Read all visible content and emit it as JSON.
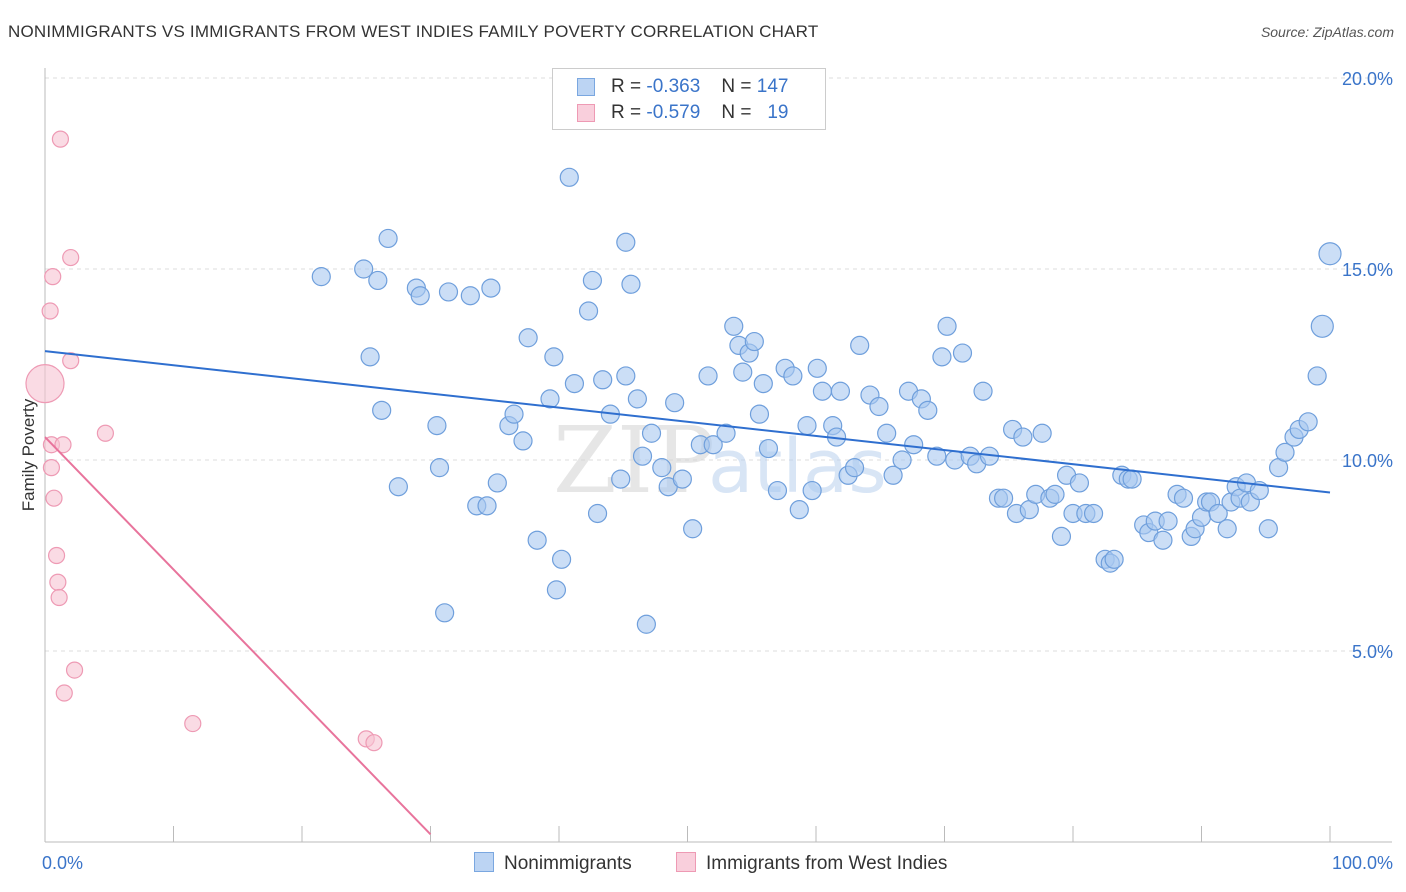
{
  "title": "NONIMMIGRANTS VS IMMIGRANTS FROM WEST INDIES FAMILY POVERTY CORRELATION CHART",
  "source": "Source: ZipAtlas.com",
  "watermark": {
    "zip": "ZIP",
    "atlas": "atlas"
  },
  "legend": [
    {
      "r_label": "R =",
      "r_value": "-0.363",
      "n_label": "N =",
      "n_value": "147",
      "color": "#a9c8f0",
      "stroke": "#7aa7e0"
    },
    {
      "r_label": "R =",
      "r_value": "-0.579",
      "n_label": "N =",
      "n_value": "19",
      "color": "#f7c3d2",
      "stroke": "#ee9ab4"
    }
  ],
  "chart_data": {
    "type": "scatter",
    "title": "NONIMMIGRANTS VS IMMIGRANTS FROM WEST INDIES FAMILY POVERTY CORRELATION CHART",
    "xlabel": "",
    "ylabel": "Family Poverty",
    "xlim": [
      0,
      100
    ],
    "ylim": [
      0,
      20
    ],
    "x_tick_labels": [
      "0.0%",
      "100.0%"
    ],
    "y_tick_labels": [
      "5.0%",
      "10.0%",
      "15.0%",
      "20.0%"
    ],
    "y_ticks": [
      5,
      10,
      15,
      20
    ],
    "grid": true,
    "legend_position": "top-center",
    "series": [
      {
        "name": "Nonimmigrants",
        "color": "#a9c8f0",
        "stroke": "#6f9fdc",
        "trend": {
          "x": [
            0,
            100
          ],
          "y": [
            12.85,
            9.15
          ],
          "color": "#2f6fcf"
        },
        "points": [
          [
            21.5,
            14.8
          ],
          [
            24.8,
            15.0
          ],
          [
            25.9,
            14.7
          ],
          [
            26.7,
            15.8
          ],
          [
            25.3,
            12.7
          ],
          [
            26.2,
            11.3
          ],
          [
            27.5,
            9.3
          ],
          [
            28.9,
            14.5
          ],
          [
            29.2,
            14.3
          ],
          [
            31.4,
            14.4
          ],
          [
            33.1,
            14.3
          ],
          [
            34.7,
            14.5
          ],
          [
            30.7,
            9.8
          ],
          [
            31.1,
            6.0
          ],
          [
            30.5,
            10.9
          ],
          [
            33.6,
            8.8
          ],
          [
            34.4,
            8.8
          ],
          [
            35.2,
            9.4
          ],
          [
            36.1,
            10.9
          ],
          [
            36.5,
            11.2
          ],
          [
            37.2,
            10.5
          ],
          [
            37.6,
            13.2
          ],
          [
            38.3,
            7.9
          ],
          [
            39.3,
            11.6
          ],
          [
            39.8,
            6.6
          ],
          [
            39.6,
            12.7
          ],
          [
            40.2,
            7.4
          ],
          [
            40.8,
            17.4
          ],
          [
            41.2,
            12.0
          ],
          [
            42.3,
            13.9
          ],
          [
            42.6,
            14.7
          ],
          [
            43.0,
            8.6
          ],
          [
            43.4,
            12.1
          ],
          [
            44.0,
            11.2
          ],
          [
            44.8,
            9.5
          ],
          [
            45.2,
            12.2
          ],
          [
            45.2,
            15.7
          ],
          [
            45.6,
            14.6
          ],
          [
            46.1,
            11.6
          ],
          [
            46.5,
            10.1
          ],
          [
            46.8,
            5.7
          ],
          [
            47.2,
            10.7
          ],
          [
            48.0,
            9.8
          ],
          [
            48.5,
            9.3
          ],
          [
            49.0,
            11.5
          ],
          [
            49.6,
            9.5
          ],
          [
            50.4,
            8.2
          ],
          [
            51.0,
            10.4
          ],
          [
            51.6,
            12.2
          ],
          [
            52.0,
            10.4
          ],
          [
            53.0,
            10.7
          ],
          [
            53.6,
            13.5
          ],
          [
            54.0,
            13.0
          ],
          [
            54.3,
            12.3
          ],
          [
            54.8,
            12.8
          ],
          [
            55.2,
            13.1
          ],
          [
            55.6,
            11.2
          ],
          [
            55.9,
            12.0
          ],
          [
            56.3,
            10.3
          ],
          [
            57.0,
            9.2
          ],
          [
            57.6,
            12.4
          ],
          [
            58.2,
            12.2
          ],
          [
            58.7,
            8.7
          ],
          [
            59.3,
            10.9
          ],
          [
            59.7,
            9.2
          ],
          [
            60.1,
            12.4
          ],
          [
            60.5,
            11.8
          ],
          [
            61.3,
            10.9
          ],
          [
            61.6,
            10.6
          ],
          [
            61.9,
            11.8
          ],
          [
            62.5,
            9.6
          ],
          [
            63.0,
            9.8
          ],
          [
            63.4,
            13.0
          ],
          [
            64.2,
            11.7
          ],
          [
            64.9,
            11.4
          ],
          [
            65.5,
            10.7
          ],
          [
            66.0,
            9.6
          ],
          [
            66.7,
            10.0
          ],
          [
            67.2,
            11.8
          ],
          [
            67.6,
            10.4
          ],
          [
            68.2,
            11.6
          ],
          [
            68.7,
            11.3
          ],
          [
            69.4,
            10.1
          ],
          [
            69.8,
            12.7
          ],
          [
            70.2,
            13.5
          ],
          [
            70.8,
            10.0
          ],
          [
            71.4,
            12.8
          ],
          [
            72.0,
            10.1
          ],
          [
            72.5,
            9.9
          ],
          [
            73.0,
            11.8
          ],
          [
            73.5,
            10.1
          ],
          [
            74.2,
            9.0
          ],
          [
            74.6,
            9.0
          ],
          [
            75.3,
            10.8
          ],
          [
            75.6,
            8.6
          ],
          [
            76.1,
            10.6
          ],
          [
            76.6,
            8.7
          ],
          [
            77.1,
            9.1
          ],
          [
            77.6,
            10.7
          ],
          [
            78.2,
            9.0
          ],
          [
            78.6,
            9.1
          ],
          [
            79.1,
            8.0
          ],
          [
            79.5,
            9.6
          ],
          [
            80.0,
            8.6
          ],
          [
            80.5,
            9.4
          ],
          [
            81.0,
            8.6
          ],
          [
            81.6,
            8.6
          ],
          [
            82.5,
            7.4
          ],
          [
            82.9,
            7.3
          ],
          [
            83.2,
            7.4
          ],
          [
            83.8,
            9.6
          ],
          [
            84.3,
            9.5
          ],
          [
            84.6,
            9.5
          ],
          [
            85.5,
            8.3
          ],
          [
            85.9,
            8.1
          ],
          [
            86.4,
            8.4
          ],
          [
            87.0,
            7.9
          ],
          [
            87.4,
            8.4
          ],
          [
            88.1,
            9.1
          ],
          [
            88.6,
            9.0
          ],
          [
            89.2,
            8.0
          ],
          [
            89.5,
            8.2
          ],
          [
            90.0,
            8.5
          ],
          [
            90.4,
            8.9
          ],
          [
            90.7,
            8.9
          ],
          [
            91.3,
            8.6
          ],
          [
            92.0,
            8.2
          ],
          [
            92.3,
            8.9
          ],
          [
            92.7,
            9.3
          ],
          [
            93.0,
            9.0
          ],
          [
            93.5,
            9.4
          ],
          [
            93.8,
            8.9
          ],
          [
            94.5,
            9.2
          ],
          [
            95.2,
            8.2
          ],
          [
            96.0,
            9.8
          ],
          [
            96.5,
            10.2
          ],
          [
            97.2,
            10.6
          ],
          [
            97.6,
            10.8
          ],
          [
            98.3,
            11.0
          ],
          [
            99.0,
            12.2
          ],
          [
            99.4,
            13.5
          ],
          [
            100.0,
            15.4
          ]
        ]
      },
      {
        "name": "Immigrants from West Indies",
        "color": "#f7c3d2",
        "stroke": "#ee9ab4",
        "trend": {
          "x": [
            0,
            30
          ],
          "y": [
            10.6,
            0.2
          ],
          "color": "#e8749c"
        },
        "points": [
          [
            0.0,
            12.0
          ],
          [
            1.2,
            18.4
          ],
          [
            0.6,
            14.8
          ],
          [
            2.0,
            15.3
          ],
          [
            0.4,
            13.9
          ],
          [
            2.0,
            12.6
          ],
          [
            0.5,
            10.4
          ],
          [
            1.4,
            10.4
          ],
          [
            0.5,
            9.8
          ],
          [
            4.7,
            10.7
          ],
          [
            0.7,
            9.0
          ],
          [
            0.9,
            7.5
          ],
          [
            1.0,
            6.8
          ],
          [
            1.1,
            6.4
          ],
          [
            2.3,
            4.5
          ],
          [
            1.5,
            3.9
          ],
          [
            11.5,
            3.1
          ],
          [
            25.0,
            2.7
          ],
          [
            25.6,
            2.6
          ]
        ]
      }
    ]
  }
}
